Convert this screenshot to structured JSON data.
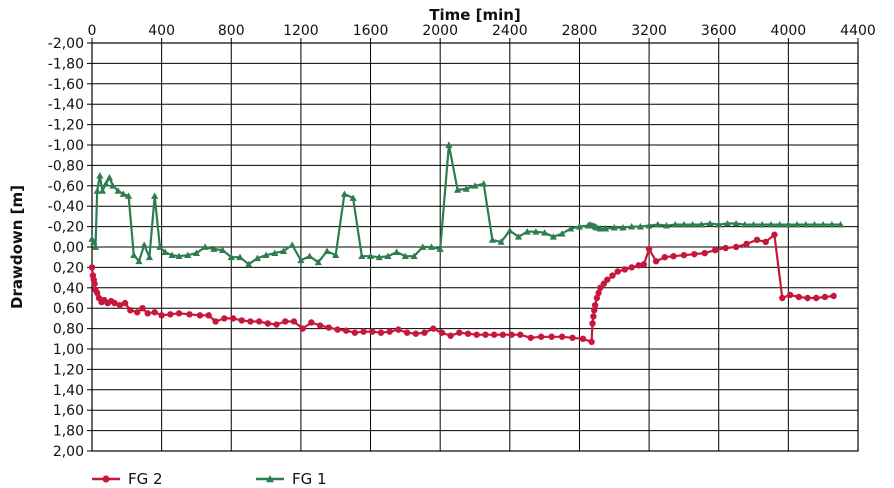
{
  "chart_data": {
    "type": "line",
    "title": "",
    "xlabel": "Time [min]",
    "ylabel": "Drawdown [m]",
    "xlim": [
      0,
      4400
    ],
    "ylim": [
      -2.0,
      2.0
    ],
    "y_inverted": true,
    "x_axis_position": "top",
    "grid": true,
    "legend": "bottom-left",
    "x_ticks": [
      "0",
      "400",
      "800",
      "1200",
      "1600",
      "2000",
      "2400",
      "2800",
      "3200",
      "3600",
      "4000",
      "4400"
    ],
    "y_ticks": [
      "-2,00",
      "-1,80",
      "-1,60",
      "-1,40",
      "-1,20",
      "-1,00",
      "-0,80",
      "-0,60",
      "-0,40",
      "-0,20",
      "0,00",
      "0,20",
      "0,40",
      "0,60",
      "0,80",
      "1,00",
      "1,20",
      "1,40",
      "1,60",
      "1,80",
      "2,00"
    ],
    "series": [
      {
        "name": "FG 2",
        "color": "#c8173c",
        "marker": "circle",
        "x": [
          0,
          5,
          10,
          15,
          20,
          30,
          40,
          55,
          70,
          90,
          110,
          130,
          160,
          190,
          220,
          260,
          290,
          320,
          360,
          400,
          450,
          500,
          560,
          620,
          670,
          710,
          760,
          810,
          860,
          910,
          960,
          1010,
          1060,
          1110,
          1160,
          1210,
          1260,
          1310,
          1360,
          1410,
          1460,
          1510,
          1560,
          1610,
          1660,
          1710,
          1760,
          1810,
          1860,
          1910,
          1960,
          2010,
          2060,
          2110,
          2160,
          2210,
          2260,
          2310,
          2360,
          2410,
          2460,
          2520,
          2580,
          2640,
          2700,
          2760,
          2820,
          2870,
          2875,
          2880,
          2885,
          2890,
          2900,
          2910,
          2920,
          2940,
          2960,
          2990,
          3020,
          3060,
          3100,
          3140,
          3170,
          3200,
          3240,
          3290,
          3340,
          3400,
          3460,
          3520,
          3580,
          3640,
          3700,
          3760,
          3820,
          3870,
          3920,
          3965,
          4010,
          4060,
          4110,
          4160,
          4210,
          4260
        ],
        "y": [
          0.2,
          0.28,
          0.32,
          0.36,
          0.42,
          0.45,
          0.5,
          0.54,
          0.52,
          0.55,
          0.53,
          0.55,
          0.57,
          0.55,
          0.62,
          0.64,
          0.6,
          0.65,
          0.64,
          0.67,
          0.66,
          0.65,
          0.66,
          0.67,
          0.67,
          0.73,
          0.7,
          0.7,
          0.72,
          0.73,
          0.73,
          0.75,
          0.76,
          0.73,
          0.73,
          0.8,
          0.74,
          0.77,
          0.79,
          0.81,
          0.82,
          0.84,
          0.83,
          0.83,
          0.84,
          0.83,
          0.81,
          0.84,
          0.85,
          0.84,
          0.8,
          0.84,
          0.87,
          0.84,
          0.85,
          0.86,
          0.86,
          0.86,
          0.86,
          0.86,
          0.86,
          0.89,
          0.88,
          0.88,
          0.88,
          0.89,
          0.9,
          0.93,
          0.75,
          0.68,
          0.62,
          0.57,
          0.5,
          0.45,
          0.4,
          0.36,
          0.32,
          0.28,
          0.24,
          0.22,
          0.2,
          0.18,
          0.17,
          0.02,
          0.14,
          0.1,
          0.09,
          0.08,
          0.07,
          0.06,
          0.03,
          0.01,
          0.0,
          -0.03,
          -0.07,
          -0.05,
          -0.12,
          0.5,
          0.47,
          0.49,
          0.5,
          0.5,
          0.49,
          0.48
        ]
      },
      {
        "name": "FG 1",
        "color": "#2e7d4f",
        "marker": "triangle",
        "x": [
          0,
          10,
          20,
          30,
          45,
          60,
          80,
          100,
          120,
          150,
          180,
          210,
          240,
          270,
          300,
          330,
          360,
          390,
          420,
          460,
          500,
          550,
          600,
          650,
          700,
          750,
          800,
          850,
          900,
          950,
          1000,
          1050,
          1100,
          1150,
          1200,
          1250,
          1300,
          1350,
          1400,
          1450,
          1500,
          1550,
          1600,
          1650,
          1700,
          1750,
          1800,
          1850,
          1900,
          1950,
          2000,
          2050,
          2100,
          2150,
          2200,
          2250,
          2300,
          2350,
          2400,
          2450,
          2500,
          2550,
          2600,
          2650,
          2700,
          2750,
          2800,
          2850,
          2860,
          2870,
          2880,
          2890,
          2900,
          2920,
          2950,
          3000,
          3050,
          3100,
          3150,
          3200,
          3250,
          3300,
          3350,
          3400,
          3450,
          3500,
          3550,
          3600,
          3650,
          3700,
          3750,
          3800,
          3850,
          3900,
          3950,
          4000,
          4050,
          4100,
          4150,
          4200,
          4250,
          4300
        ],
        "y": [
          -0.08,
          -0.05,
          0.0,
          -0.55,
          -0.7,
          -0.55,
          -0.62,
          -0.68,
          -0.6,
          -0.55,
          -0.52,
          -0.5,
          0.08,
          0.14,
          -0.02,
          0.1,
          -0.5,
          0.0,
          0.05,
          0.08,
          0.09,
          0.08,
          0.06,
          0.0,
          0.02,
          0.03,
          0.1,
          0.1,
          0.17,
          0.11,
          0.08,
          0.06,
          0.04,
          -0.02,
          0.13,
          0.09,
          0.15,
          0.04,
          0.08,
          -0.52,
          -0.48,
          0.09,
          0.09,
          0.1,
          0.09,
          0.05,
          0.09,
          0.09,
          0.0,
          0.0,
          0.02,
          -1.0,
          -0.56,
          -0.57,
          -0.6,
          -0.62,
          -0.07,
          -0.05,
          -0.16,
          -0.1,
          -0.15,
          -0.15,
          -0.14,
          -0.1,
          -0.13,
          -0.18,
          -0.2,
          -0.21,
          -0.22,
          -0.21,
          -0.21,
          -0.2,
          -0.19,
          -0.18,
          -0.18,
          -0.19,
          -0.19,
          -0.2,
          -0.2,
          -0.21,
          -0.22,
          -0.21,
          -0.22,
          -0.22,
          -0.22,
          -0.22,
          -0.23,
          -0.22,
          -0.23,
          -0.23,
          -0.22,
          -0.22,
          -0.22,
          -0.22,
          -0.22,
          -0.22,
          -0.22,
          -0.22,
          -0.22,
          -0.22,
          -0.22,
          -0.22
        ]
      }
    ]
  }
}
